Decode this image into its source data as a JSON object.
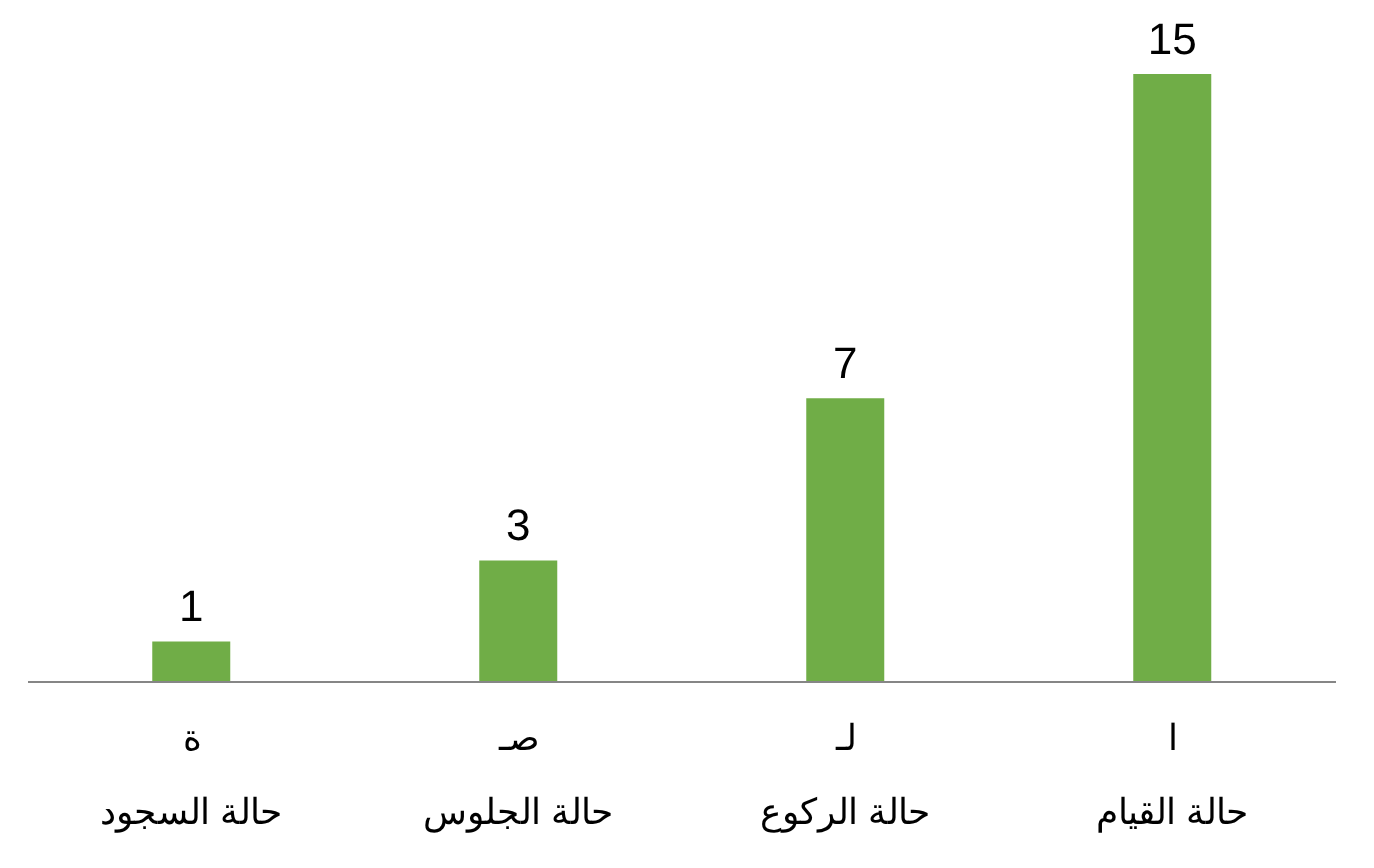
{
  "chart_data": {
    "type": "bar",
    "categories": [
      "ة\nحالة السجود",
      "صـ\nحالة الجلوس",
      "لـ\nحالة الركوع",
      "ا\nحالة القيام"
    ],
    "values": [
      1,
      3,
      7,
      15
    ],
    "color": "#70ad47",
    "data_labels": true,
    "grid": false,
    "legend": false
  }
}
